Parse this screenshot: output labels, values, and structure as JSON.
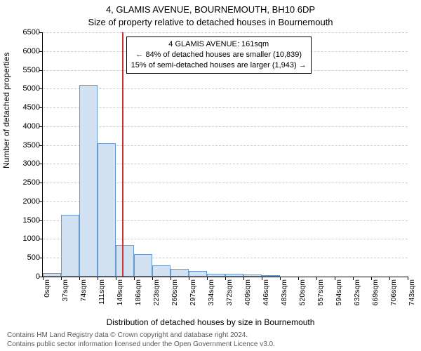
{
  "title_line1": "4, GLAMIS AVENUE, BOURNEMOUTH, BH10 6DP",
  "title_line2": "Size of property relative to detached houses in Bournemouth",
  "y_axis_label": "Number of detached properties",
  "x_axis_label": "Distribution of detached houses by size in Bournemouth",
  "chart": {
    "type": "histogram",
    "ylim": [
      0,
      6500
    ],
    "ytick_step": 500,
    "y_ticks": [
      0,
      500,
      1000,
      1500,
      2000,
      2500,
      3000,
      3500,
      4000,
      4500,
      5000,
      5500,
      6000,
      6500
    ],
    "x_tick_labels": [
      "0sqm",
      "37sqm",
      "74sqm",
      "111sqm",
      "149sqm",
      "186sqm",
      "223sqm",
      "260sqm",
      "297sqm",
      "334sqm",
      "372sqm",
      "409sqm",
      "446sqm",
      "483sqm",
      "520sqm",
      "557sqm",
      "594sqm",
      "632sqm",
      "669sqm",
      "706sqm",
      "743sqm"
    ],
    "bar_values": [
      90,
      1650,
      5100,
      3550,
      850,
      600,
      300,
      200,
      150,
      80,
      80,
      50,
      40,
      0,
      0,
      0,
      0,
      0,
      0,
      0
    ],
    "bar_fill_color": "#d3e2f3",
    "bar_border_color": "#6699cc",
    "grid_color": "#cccccc",
    "axis_color": "#000000",
    "background_color": "#ffffff",
    "marker_value_sqm": 161,
    "marker_line_color": "#cc3333",
    "annotation_box": {
      "line1": "4 GLAMIS AVENUE: 161sqm",
      "line2": "← 84% of detached houses are smaller (10,839)",
      "line3": "15% of semi-detached houses are larger (1,943) →",
      "border_color": "#000000",
      "background_color": "#ffffff",
      "fontsize": 11
    },
    "title_fontsize": 13,
    "axis_label_fontsize": 12,
    "tick_fontsize": 11
  },
  "footer_line1": "Contains HM Land Registry data © Crown copyright and database right 2024.",
  "footer_line2": "Contains public sector information licensed under the Open Government Licence v3.0."
}
